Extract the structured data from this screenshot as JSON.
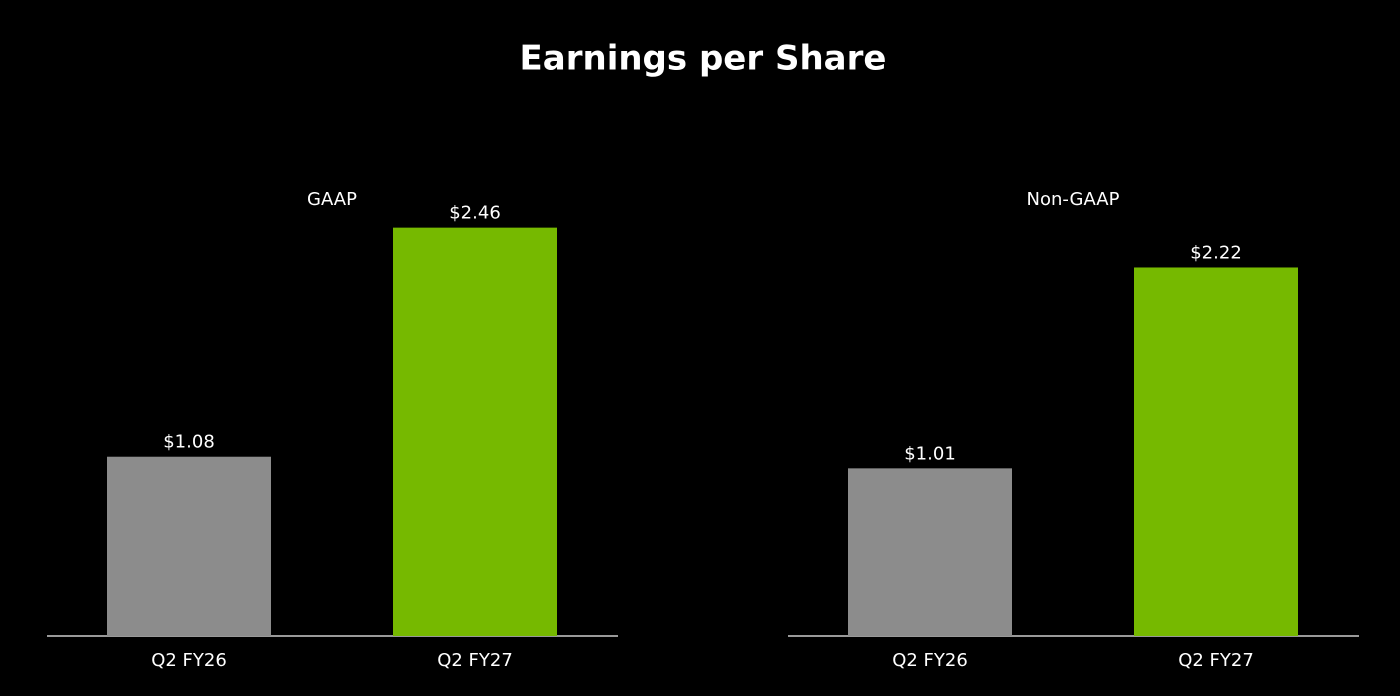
{
  "title": "Earnings per Share",
  "chart_data": [
    {
      "type": "bar",
      "title": "GAAP",
      "categories": [
        "Q2 FY26",
        "Q2 FY27"
      ],
      "values": [
        1.08,
        2.46
      ],
      "value_labels": [
        "$1.08",
        "$2.46"
      ],
      "colors": [
        "#8c8c8c",
        "#76b900"
      ]
    },
    {
      "type": "bar",
      "title": "Non-GAAP",
      "categories": [
        "Q2 FY26",
        "Q2 FY27"
      ],
      "values": [
        1.01,
        2.22
      ],
      "value_labels": [
        "$1.01",
        "$2.22"
      ],
      "colors": [
        "#8c8c8c",
        "#76b900"
      ]
    }
  ]
}
